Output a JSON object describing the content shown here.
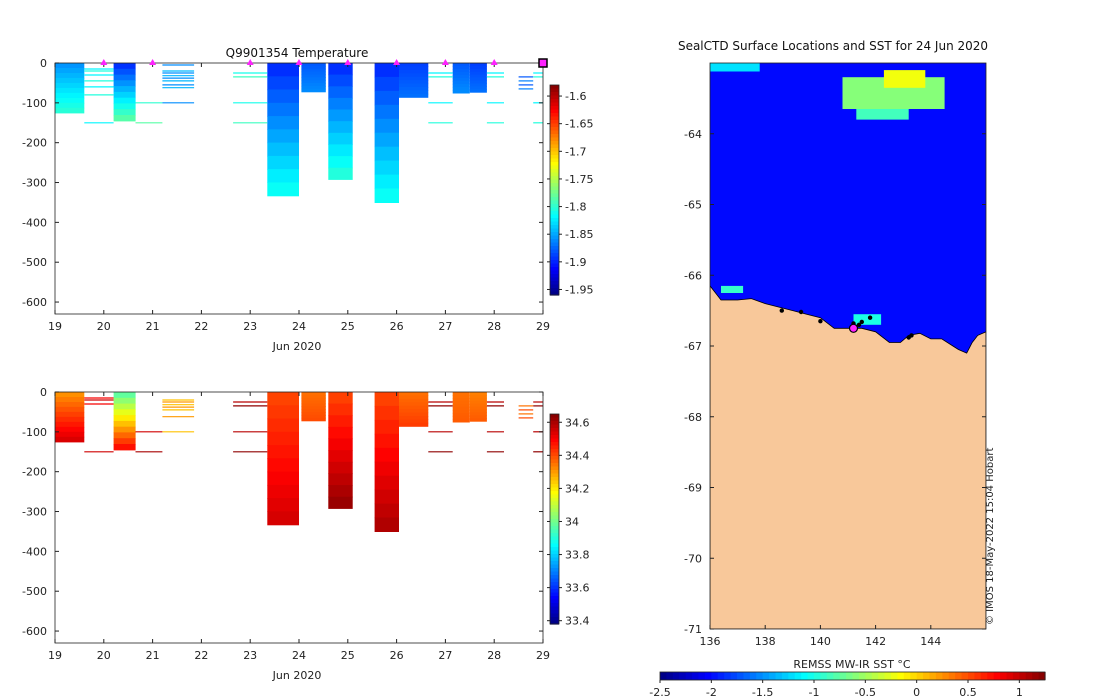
{
  "chart_data": [
    {
      "type": "heatmap",
      "title": "Q9901354  Temperature",
      "xlabel": "Jun 2020",
      "x_ticks": [
        "19",
        "20",
        "21",
        "22",
        "23",
        "24",
        "25",
        "26",
        "27",
        "28",
        "29"
      ],
      "xlim": [
        19,
        29
      ],
      "ylim": [
        -630,
        0
      ],
      "y_ticks": [
        0,
        -100,
        -200,
        -300,
        -400,
        -500,
        -600
      ],
      "colorbar": {
        "min": -1.96,
        "max": -1.58,
        "ticks": [
          -1.6,
          -1.65,
          -1.7,
          -1.75,
          -1.8,
          -1.85,
          -1.9,
          -1.95
        ],
        "colormap": "jet"
      },
      "surface_markers_day": [
        20,
        21,
        23,
        24,
        25,
        26,
        27,
        28
      ],
      "end_marker_day": 29,
      "profiles": [
        {
          "day_start": 19.0,
          "day_end": 19.6,
          "depth": 125,
          "top": -1.86,
          "bottom": -1.8
        },
        {
          "day_start": 20.2,
          "day_end": 20.65,
          "depth": 145,
          "top": -1.9,
          "bottom": -1.78
        },
        {
          "day_start": 23.35,
          "day_end": 24.0,
          "depth": 333,
          "top": -1.9,
          "bottom": -1.81
        },
        {
          "day_start": 24.05,
          "day_end": 24.55,
          "depth": 72,
          "top": -1.88,
          "bottom": -1.86
        },
        {
          "day_start": 24.6,
          "day_end": 25.1,
          "depth": 292,
          "top": -1.9,
          "bottom": -1.8
        },
        {
          "day_start": 25.55,
          "day_end": 26.05,
          "depth": 350,
          "top": -1.9,
          "bottom": -1.81
        },
        {
          "day_start": 26.05,
          "day_end": 26.65,
          "depth": 86,
          "top": -1.89,
          "bottom": -1.87
        },
        {
          "day_start": 27.15,
          "day_end": 27.5,
          "depth": 75,
          "top": -1.88,
          "bottom": -1.86
        },
        {
          "day_start": 27.5,
          "day_end": 27.85,
          "depth": 73,
          "top": -1.89,
          "bottom": -1.87
        }
      ],
      "levels": [
        {
          "day_start": 19.6,
          "day_end": 20.2,
          "depths": [
            15,
            20,
            30,
            45,
            60,
            80,
            150
          ],
          "value": -1.82
        },
        {
          "day_start": 20.65,
          "day_end": 21.2,
          "depths": [
            100,
            150
          ],
          "value": -1.8
        },
        {
          "day_start": 21.2,
          "day_end": 21.85,
          "depths": [
            5,
            20,
            25,
            32,
            38,
            45,
            55,
            62,
            100
          ],
          "value": -1.86
        },
        {
          "day_start": 22.65,
          "day_end": 23.35,
          "depths": [
            25,
            35,
            100,
            150
          ],
          "value": -1.81
        },
        {
          "day_start": 26.65,
          "day_end": 27.15,
          "depths": [
            25,
            35,
            100,
            150
          ],
          "value": -1.82
        },
        {
          "day_start": 27.85,
          "day_end": 28.2,
          "depths": [
            25,
            35,
            100,
            150
          ],
          "value": -1.82
        },
        {
          "day_start": 28.5,
          "day_end": 28.8,
          "depths": [
            35,
            45,
            55,
            65
          ],
          "value": -1.88
        },
        {
          "day_start": 28.8,
          "day_end": 29.1,
          "depths": [
            25,
            35,
            100,
            150
          ],
          "value": -1.82
        }
      ]
    },
    {
      "type": "heatmap",
      "title": "",
      "xlabel": "Jun 2020",
      "x_ticks": [
        "19",
        "20",
        "21",
        "22",
        "23",
        "24",
        "25",
        "26",
        "27",
        "28",
        "29"
      ],
      "xlim": [
        19,
        29
      ],
      "ylim": [
        -630,
        0
      ],
      "y_ticks": [
        0,
        -100,
        -200,
        -300,
        -400,
        -500,
        -600
      ],
      "colorbar": {
        "min": 33.38,
        "max": 34.65,
        "ticks": [
          34.6,
          34.4,
          34.2,
          34,
          33.8,
          33.6,
          33.4
        ],
        "colormap": "jet"
      },
      "profiles": [
        {
          "day_start": 19.0,
          "day_end": 19.6,
          "depth": 125,
          "top": 34.3,
          "bottom": 34.55
        },
        {
          "day_start": 20.2,
          "day_end": 20.65,
          "depth": 145,
          "top": 33.95,
          "bottom": 34.5
        },
        {
          "day_start": 23.35,
          "day_end": 24.0,
          "depth": 333,
          "top": 34.4,
          "bottom": 34.55
        },
        {
          "day_start": 24.05,
          "day_end": 24.55,
          "depth": 72,
          "top": 34.35,
          "bottom": 34.4
        },
        {
          "day_start": 24.6,
          "day_end": 25.1,
          "depth": 292,
          "top": 34.4,
          "bottom": 34.63
        },
        {
          "day_start": 25.55,
          "day_end": 26.05,
          "depth": 350,
          "top": 34.4,
          "bottom": 34.6
        },
        {
          "day_start": 26.05,
          "day_end": 26.65,
          "depth": 86,
          "top": 34.35,
          "bottom": 34.42
        },
        {
          "day_start": 27.15,
          "day_end": 27.5,
          "depth": 75,
          "top": 34.35,
          "bottom": 34.38
        },
        {
          "day_start": 27.5,
          "day_end": 27.85,
          "depth": 73,
          "top": 34.33,
          "bottom": 34.38
        }
      ],
      "levels": [
        {
          "day_start": 19.6,
          "day_end": 20.2,
          "depths": [
            15,
            20,
            30,
            150
          ],
          "value": 34.5
        },
        {
          "day_start": 20.65,
          "day_end": 21.2,
          "depths": [
            100,
            150
          ],
          "value": 34.55
        },
        {
          "day_start": 21.2,
          "day_end": 21.85,
          "depths": [
            20,
            25,
            32,
            38,
            45,
            62,
            100
          ],
          "value": 34.25
        },
        {
          "day_start": 22.65,
          "day_end": 23.35,
          "depths": [
            25,
            35,
            100,
            150
          ],
          "value": 34.58
        },
        {
          "day_start": 26.65,
          "day_end": 27.15,
          "depths": [
            25,
            35,
            100,
            150
          ],
          "value": 34.58
        },
        {
          "day_start": 27.85,
          "day_end": 28.2,
          "depths": [
            25,
            35,
            100,
            150
          ],
          "value": 34.58
        },
        {
          "day_start": 28.5,
          "day_end": 28.8,
          "depths": [
            35,
            45,
            55,
            65
          ],
          "value": 34.35
        },
        {
          "day_start": 28.8,
          "day_end": 29.1,
          "depths": [
            25,
            35,
            100,
            150
          ],
          "value": 34.58
        }
      ]
    },
    {
      "type": "heatmap",
      "title": "SealCTD Surface Locations and SST for 24 Jun 2020",
      "xlabel": "",
      "colorbar_label": "REMSS MW-IR SST °C",
      "x_ticks": [
        "136",
        "138",
        "140",
        "142",
        "144"
      ],
      "xlim": [
        136,
        146
      ],
      "y_ticks": [
        "-64",
        "-65",
        "-66",
        "-67",
        "-68",
        "-69",
        "-70",
        "-71"
      ],
      "ylim": [
        -71,
        -63
      ],
      "colorbar": {
        "min": -2.5,
        "max": 1.25,
        "ticks": [
          "-2.5",
          "-2",
          "-1.5",
          "-1",
          "-0.5",
          "0",
          "0.5",
          "1"
        ],
        "colormap": "jet"
      },
      "background_sst": -2.0,
      "land_color": "#F8C89A",
      "credit": "© IMOS 18-May-2022 15:04 Hobart",
      "coastline": [
        [
          136,
          -66.15
        ],
        [
          136.4,
          -66.35
        ],
        [
          137,
          -66.35
        ],
        [
          137.5,
          -66.33
        ],
        [
          138,
          -66.4
        ],
        [
          138.5,
          -66.45
        ],
        [
          139,
          -66.5
        ],
        [
          139.5,
          -66.55
        ],
        [
          140,
          -66.6
        ],
        [
          140.5,
          -66.75
        ],
        [
          141,
          -66.75
        ],
        [
          141.5,
          -66.75
        ],
        [
          142,
          -66.8
        ],
        [
          142.5,
          -66.95
        ],
        [
          142.9,
          -66.95
        ],
        [
          143.2,
          -66.85
        ],
        [
          143.6,
          -66.82
        ],
        [
          144,
          -66.9
        ],
        [
          144.4,
          -66.9
        ],
        [
          144.8,
          -67.0
        ],
        [
          145,
          -67.05
        ],
        [
          145.3,
          -67.1
        ],
        [
          145.5,
          -66.95
        ],
        [
          145.7,
          -66.85
        ],
        [
          146,
          -66.8
        ]
      ],
      "sst_anomalies": [
        {
          "lon": 140.8,
          "lat": -63.2,
          "lon2": 144.5,
          "lat2": -63.65,
          "value": -0.6
        },
        {
          "lon": 141.3,
          "lat": -63.65,
          "lon2": 143.2,
          "lat2": -63.8,
          "value": -0.85
        },
        {
          "lon": 142.3,
          "lat": -63.1,
          "lon2": 143.8,
          "lat2": -63.35,
          "value": -0.2
        },
        {
          "lon": 136,
          "lat": -63.0,
          "lon2": 137.8,
          "lat2": -63.12,
          "value": -1.2
        },
        {
          "lon": 136.4,
          "lat": -66.15,
          "lon2": 137.2,
          "lat2": -66.25,
          "value": -0.9
        },
        {
          "lon": 141.2,
          "lat": -66.55,
          "lon2": 142.2,
          "lat2": -66.7,
          "value": -1.0
        }
      ],
      "seal_positions": [
        [
          138.6,
          -66.5
        ],
        [
          139.3,
          -66.52
        ],
        [
          140,
          -66.65
        ],
        [
          141.2,
          -66.68
        ],
        [
          141.4,
          -66.7
        ],
        [
          141.5,
          -66.66
        ],
        [
          141.8,
          -66.6
        ],
        [
          143.3,
          -66.85
        ],
        [
          143.2,
          -66.88
        ]
      ],
      "current_position": [
        141.2,
        -66.75
      ]
    }
  ]
}
